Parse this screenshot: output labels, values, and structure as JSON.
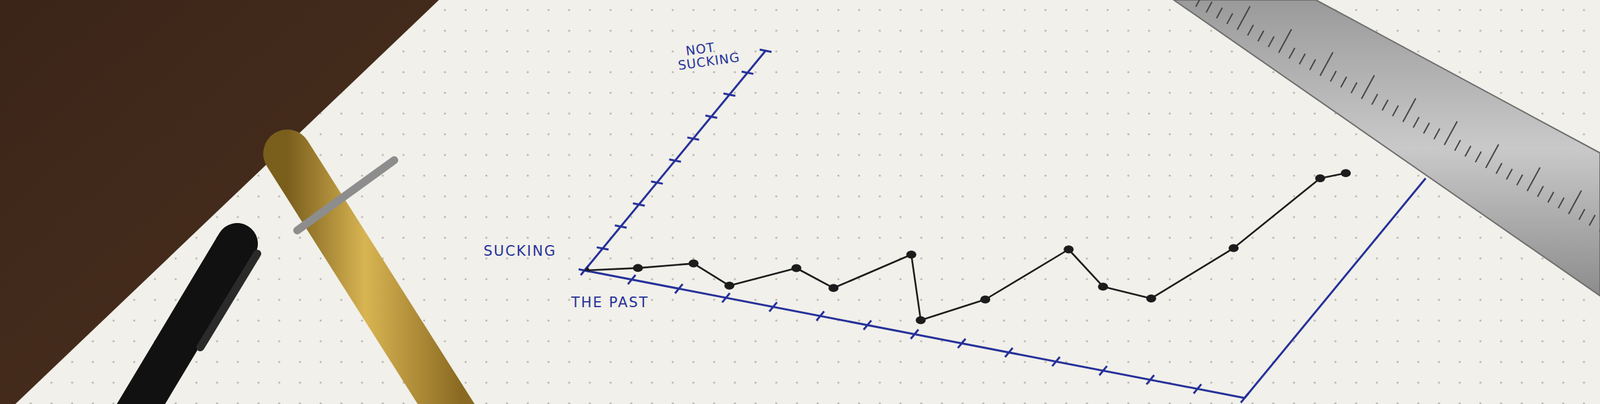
{
  "chart_data": {
    "type": "line",
    "x_label": "THE PAST",
    "y_label": "NOT SUCKING",
    "y_label_low": "SUCKING",
    "x": [
      0,
      0.94,
      1.89,
      2.88,
      3.84,
      4.82,
      5.74,
      6.9,
      7.77,
      8.54,
      9.73,
      10.79,
      11.54,
      12.07,
      12.46
    ],
    "values": [
      0,
      0.5,
      1.1,
      0.5,
      1.7,
      1.2,
      3.1,
      0.6,
      1.9,
      4.5,
      3.3,
      3.2,
      5.8,
      9.2,
      9.6
    ],
    "color": "#1c1c1c",
    "marker": "circle",
    "xlim": [
      0,
      14
    ],
    "ylim": [
      0,
      10
    ],
    "xticks": [
      0,
      1,
      2,
      3,
      4,
      5,
      6,
      7,
      8,
      9,
      10,
      11,
      12,
      13,
      14
    ],
    "yticks": [
      0,
      1,
      2,
      3,
      4,
      5,
      6,
      7,
      8,
      9,
      10
    ],
    "tick_labels": false,
    "grid": false
  }
}
